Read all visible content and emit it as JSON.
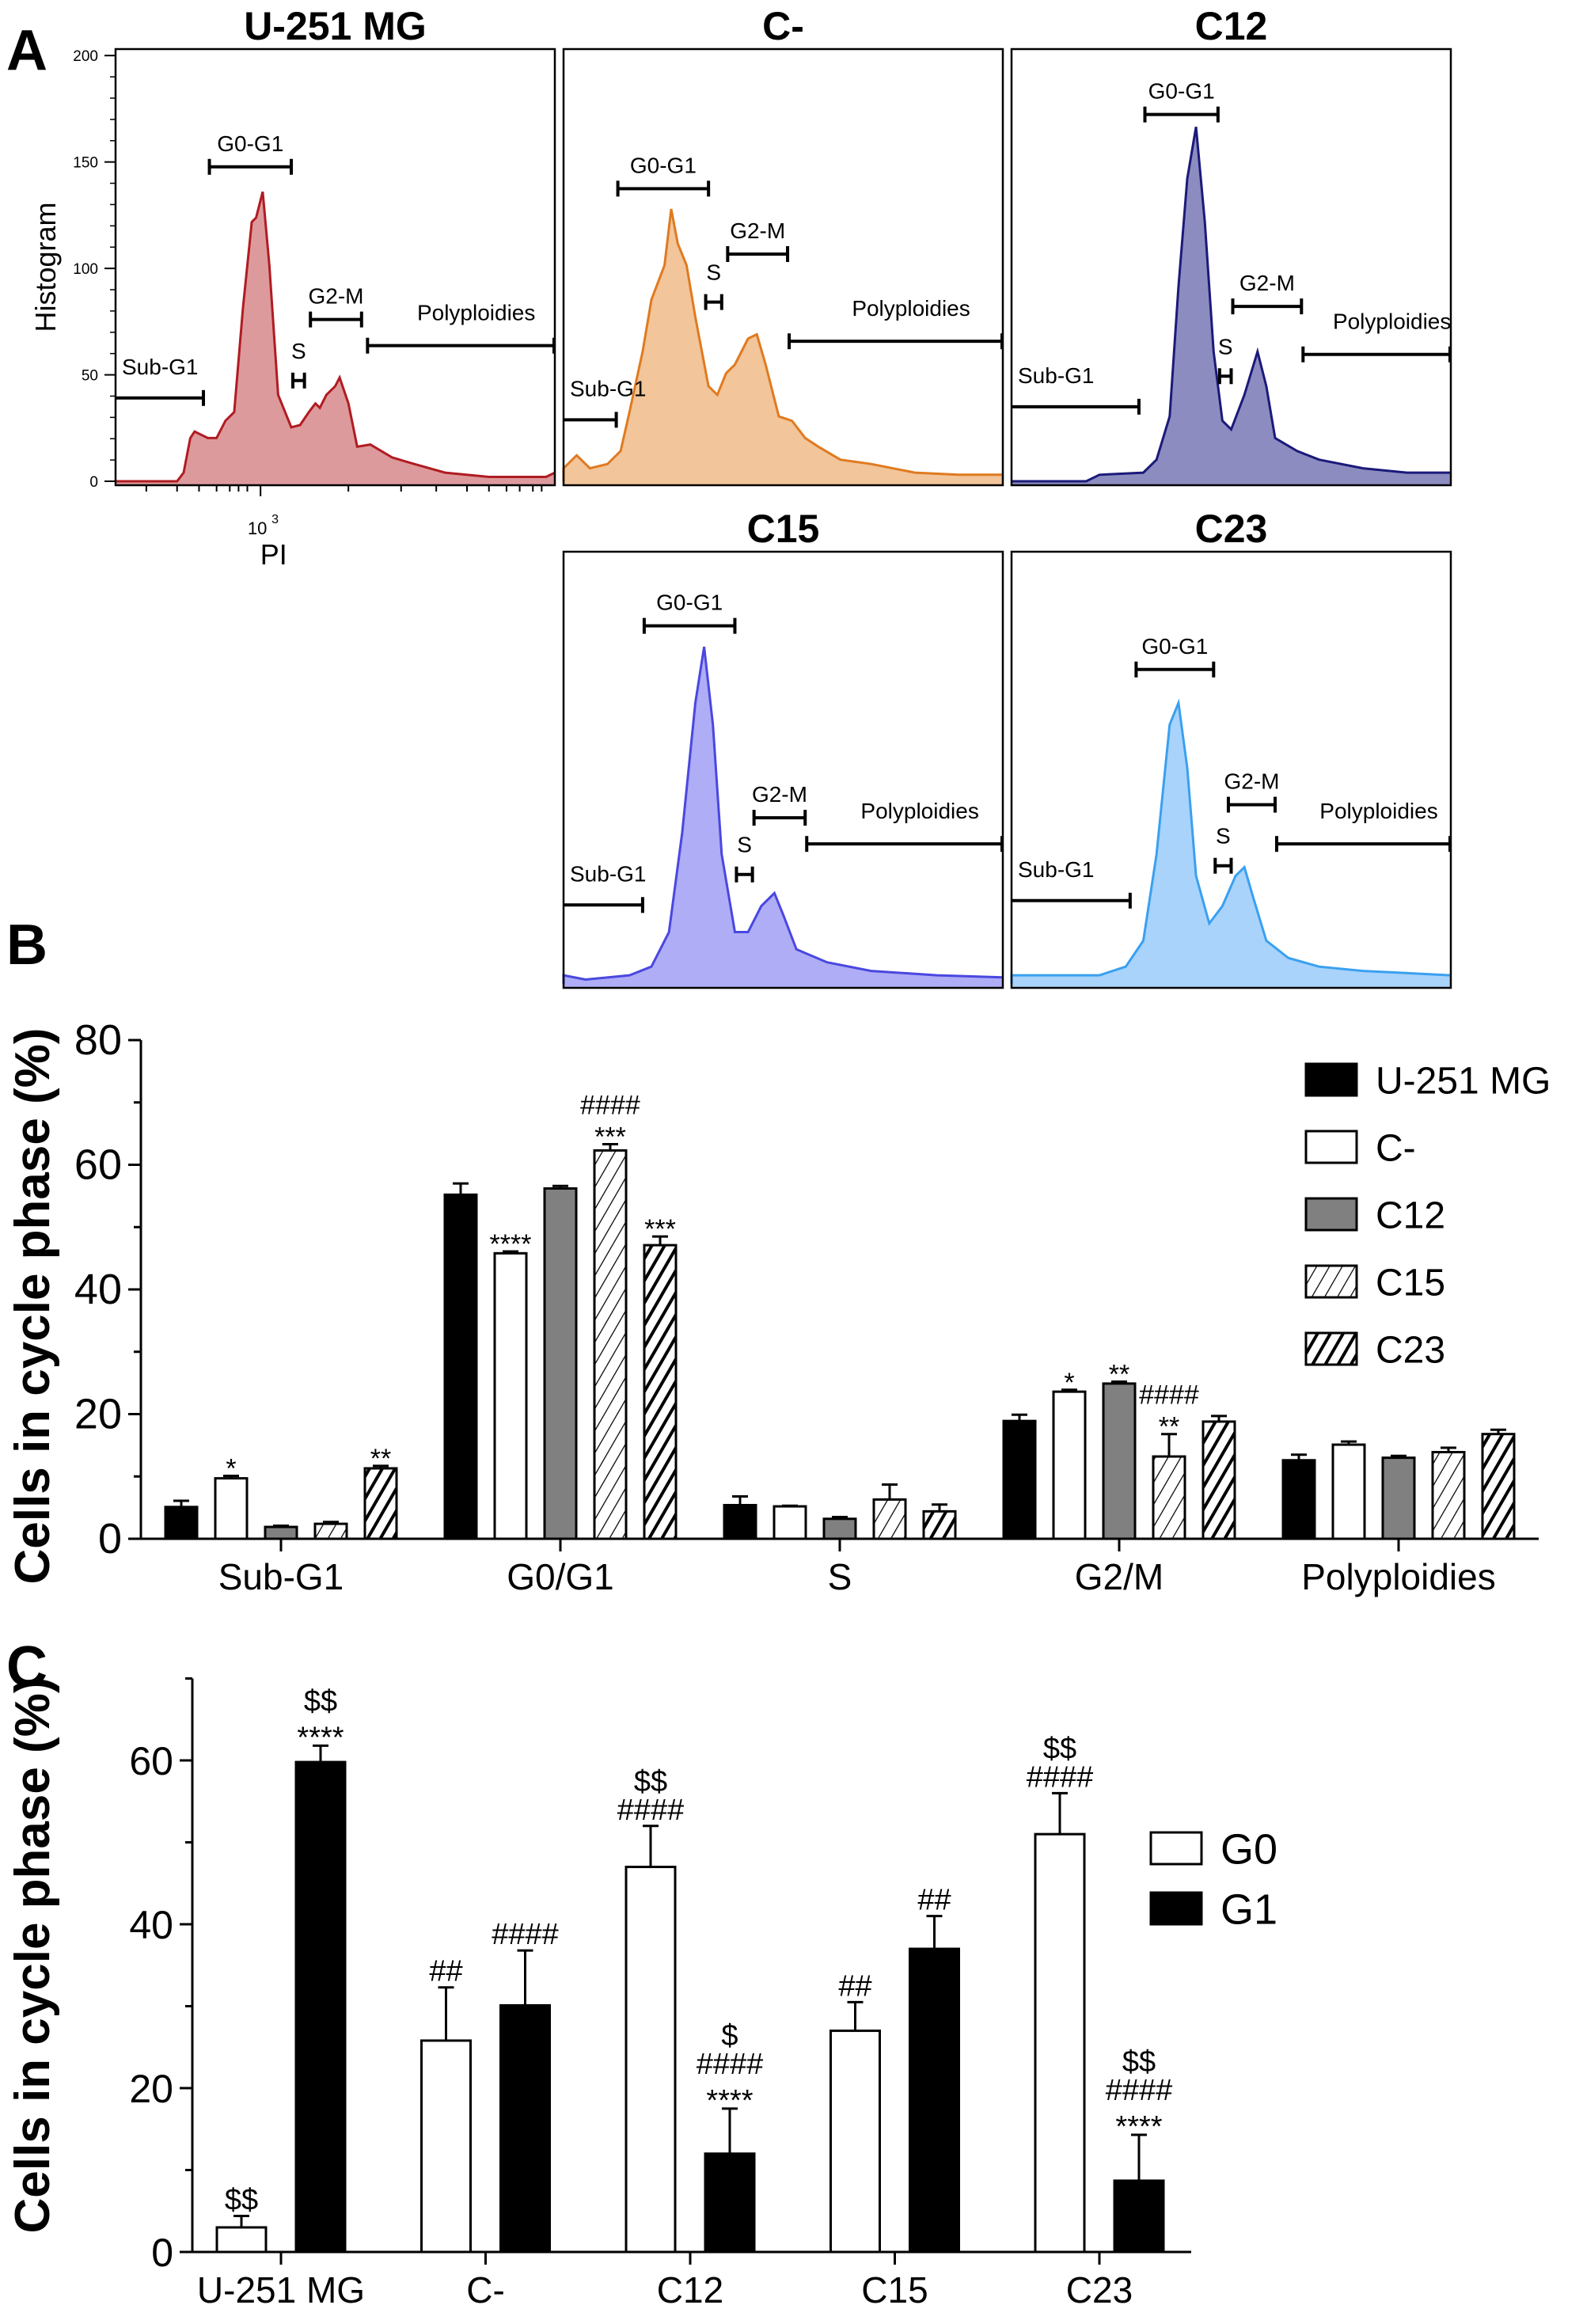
{
  "panels": {
    "a": "A",
    "b": "B",
    "c": "C"
  },
  "chart_data": [
    {
      "type": "area",
      "panel": "A",
      "histograms": [
        {
          "title": "U-251 MG",
          "stroke": "#b01c22",
          "fill": "#dd9a9c"
        },
        {
          "title": "C-",
          "stroke": "#e07a20",
          "fill": "#f2c59a"
        },
        {
          "title": "C12",
          "stroke": "#1b1a7a",
          "fill": "#8c8cc0"
        },
        {
          "title": "C15",
          "stroke": "#4a47e0",
          "fill": "#aeadf5"
        },
        {
          "title": "C23",
          "stroke": "#3aa0f0",
          "fill": "#a9d3fb"
        }
      ],
      "gates": [
        "Sub-G1",
        "G0-G1",
        "S",
        "G2-M",
        "Polyploidies"
      ],
      "ylabel": "Histogram",
      "xlabel": "PI",
      "yticks": [
        "0",
        "50",
        "100",
        "150",
        "200"
      ],
      "xtick_base": "10",
      "xtick_exp": "3",
      "ylim": [
        0,
        200
      ],
      "xscale": "log"
    },
    {
      "type": "bar",
      "panel": "B",
      "ylabel": "Cells in cycle phase (%)",
      "ylim": [
        0,
        80
      ],
      "yticks": [
        "0",
        "20",
        "40",
        "60",
        "80"
      ],
      "categories": [
        "Sub-G1",
        "G0/G1",
        "S",
        "G2/M",
        "Polyploidies"
      ],
      "legend_position": "top-right",
      "series": [
        {
          "name": "U-251 MG",
          "fill": "solid-black",
          "values": [
            5.1,
            55.2,
            5.4,
            18.9,
            12.6
          ],
          "errors": [
            1.0,
            1.8,
            1.4,
            1.0,
            0.9
          ],
          "annotations": [
            "",
            "",
            "",
            "",
            ""
          ]
        },
        {
          "name": "C-",
          "fill": "white",
          "values": [
            9.7,
            45.8,
            5.2,
            23.6,
            15.1
          ],
          "errors": [
            0.4,
            0.3,
            0.1,
            0.3,
            0.5
          ],
          "annotations": [
            "*",
            "****",
            "",
            "*",
            ""
          ]
        },
        {
          "name": "C12",
          "fill": "gray",
          "values": [
            1.9,
            56.2,
            3.2,
            24.9,
            13.0
          ],
          "errors": [
            0.2,
            0.4,
            0.3,
            0.3,
            0.3
          ],
          "annotations": [
            "",
            "",
            "",
            "**",
            ""
          ]
        },
        {
          "name": "C15",
          "fill": "thin-hatch",
          "values": [
            2.4,
            62.3,
            6.3,
            13.2,
            13.9
          ],
          "errors": [
            0.3,
            1.0,
            2.4,
            3.6,
            0.7
          ],
          "annotations": [
            "",
            "***\n####",
            "",
            "**\n####",
            ""
          ]
        },
        {
          "name": "C23",
          "fill": "thick-hatch",
          "values": [
            11.3,
            47.1,
            4.4,
            18.8,
            16.8
          ],
          "errors": [
            0.4,
            1.4,
            1.1,
            0.9,
            0.7
          ],
          "annotations": [
            "**",
            "***",
            "",
            "",
            ""
          ]
        }
      ]
    },
    {
      "type": "bar",
      "panel": "C",
      "ylabel": "Cells in cycle phase (%)",
      "ylim": [
        0,
        70
      ],
      "yticks": [
        "0",
        "20",
        "40",
        "60"
      ],
      "categories": [
        "U-251 MG",
        "C-",
        "C12",
        "C15",
        "C23"
      ],
      "legend_position": "right",
      "series": [
        {
          "name": "G0",
          "fill": "white",
          "values": [
            3.0,
            25.8,
            47.0,
            27.0,
            51.0
          ],
          "errors": [
            1.4,
            6.5,
            5.0,
            3.5,
            5.0
          ],
          "annotations": [
            "$$",
            "##",
            "####\n$$",
            "##",
            "####\n$$"
          ]
        },
        {
          "name": "G1",
          "fill": "solid-black",
          "values": [
            59.8,
            30.1,
            12.0,
            37.0,
            8.7
          ],
          "errors": [
            2.0,
            6.7,
            5.5,
            4.0,
            5.6
          ],
          "annotations": [
            "****\n$$",
            "####",
            "****\n####\n$",
            "##",
            "****\n####\n$$"
          ]
        }
      ]
    }
  ]
}
